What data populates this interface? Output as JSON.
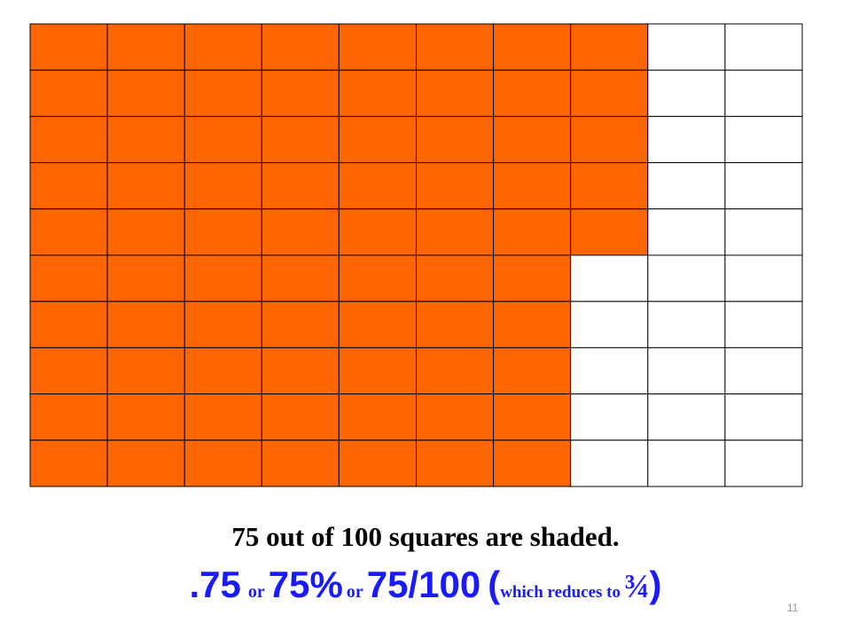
{
  "grid": {
    "rows": 10,
    "columns": 10,
    "shaded_per_row": [
      8,
      8,
      8,
      8,
      8,
      7,
      7,
      7,
      7,
      7
    ],
    "shaded_color": "#ff6600"
  },
  "caption": "75 out of 100 squares are shaded.",
  "expression": {
    "decimal": ".75",
    "or_1": "or",
    "percent": "75%",
    "or_2": "or",
    "fraction": "75/100",
    "open_paren": "(",
    "note": "which reduces to",
    "reduced": "¾",
    "close_paren": ")"
  },
  "page_number": "11"
}
